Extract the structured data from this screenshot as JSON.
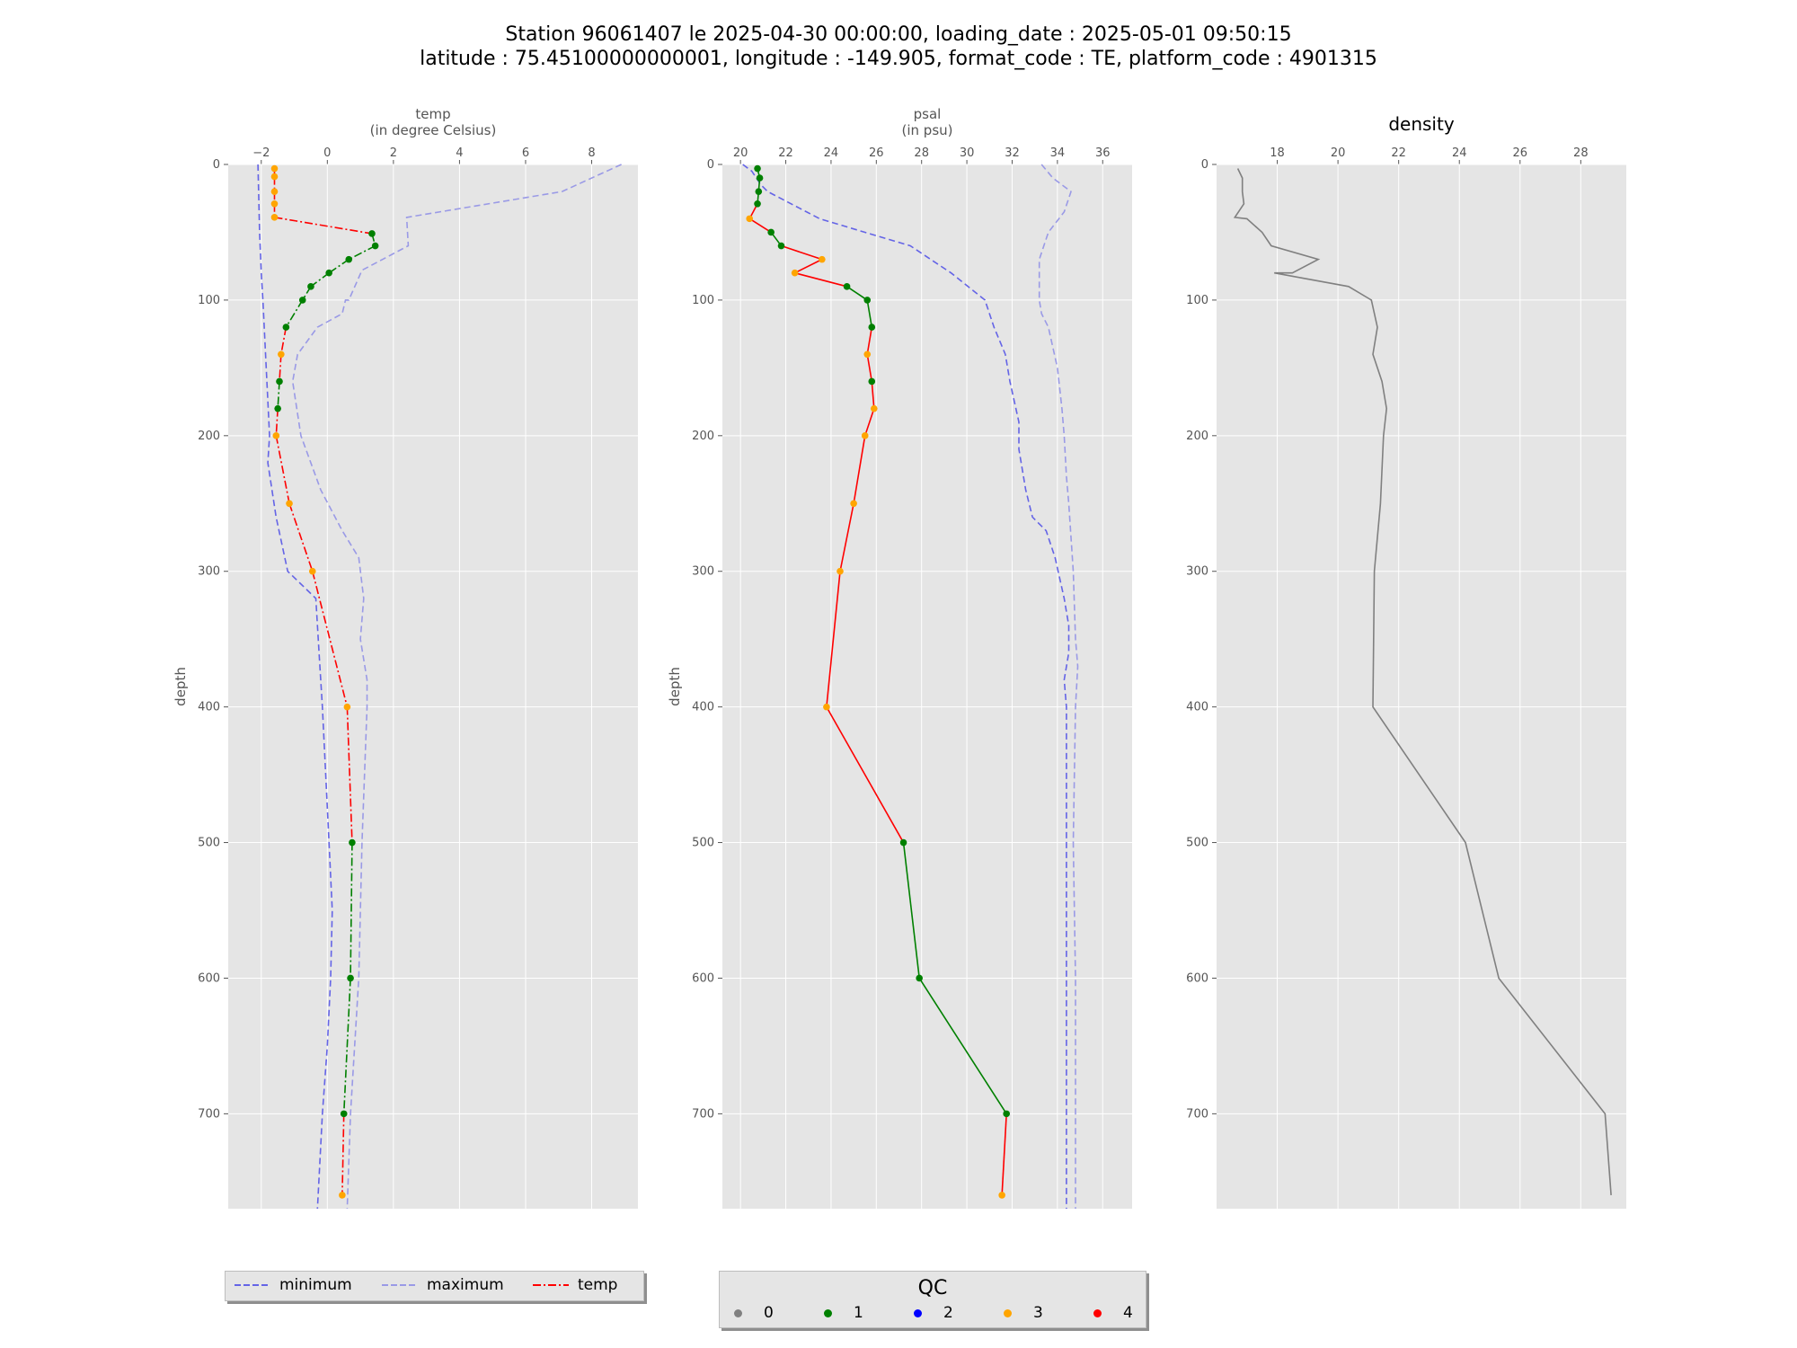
{
  "title": {
    "line1": "Station 96061407 le 2025-04-30 00:00:00, loading_date : 2025-05-01 09:50:15",
    "line2": "latitude : 75.45100000000001, longitude : -149.905, format_code : TE, platform_code : 4901315"
  },
  "legend_lines": [
    {
      "label": "minimum",
      "color": "#6464e6",
      "dash": "dashed"
    },
    {
      "label": "maximum",
      "color": "#9a9ae6",
      "dash": "dashed"
    },
    {
      "label": "temp",
      "color": "#ff0000",
      "dash": "dashdot"
    }
  ],
  "legend_qc": {
    "title": "QC",
    "entries": [
      {
        "label": "0",
        "color": "#808080"
      },
      {
        "label": "1",
        "color": "#008000"
      },
      {
        "label": "2",
        "color": "#0000ff"
      },
      {
        "label": "3",
        "color": "#ffa500"
      },
      {
        "label": "4",
        "color": "#ff0000"
      }
    ]
  },
  "chart_data": [
    {
      "type": "line",
      "title": "temp\n(in degree Celsius)",
      "ylabel": "depth",
      "xlim": [
        -3.0,
        9.4
      ],
      "ylim": [
        770,
        0
      ],
      "x_ticks": [
        -2,
        0,
        2,
        4,
        6,
        8
      ],
      "x_tick_labels": [
        "−2",
        "0",
        "2",
        "4",
        "6",
        "8"
      ],
      "y_ticks": [
        0,
        100,
        200,
        300,
        400,
        500,
        600,
        700
      ],
      "grid": true,
      "x_axis_position": "top",
      "qc_colors": {
        "1": "#008000",
        "3": "#ffa500",
        "4": "#ff0000"
      },
      "profile": {
        "name": "temp",
        "points": [
          {
            "value": -1.6,
            "depth": 3,
            "qc": 3
          },
          {
            "value": -1.6,
            "depth": 9,
            "qc": 3
          },
          {
            "value": -1.6,
            "depth": 20,
            "qc": 3
          },
          {
            "value": -1.6,
            "depth": 29,
            "qc": 3
          },
          {
            "value": -1.6,
            "depth": 39,
            "qc": 3
          },
          {
            "value": 1.35,
            "depth": 51,
            "qc": 1
          },
          {
            "value": 1.45,
            "depth": 60,
            "qc": 1
          },
          {
            "value": 0.65,
            "depth": 70,
            "qc": 1
          },
          {
            "value": 0.05,
            "depth": 80,
            "qc": 1
          },
          {
            "value": -0.5,
            "depth": 90,
            "qc": 1
          },
          {
            "value": -0.75,
            "depth": 100,
            "qc": 1
          },
          {
            "value": -1.25,
            "depth": 120,
            "qc": 1
          },
          {
            "value": -1.4,
            "depth": 140,
            "qc": 3
          },
          {
            "value": -1.45,
            "depth": 160,
            "qc": 1
          },
          {
            "value": -1.5,
            "depth": 180,
            "qc": 1
          },
          {
            "value": -1.55,
            "depth": 200,
            "qc": 3
          },
          {
            "value": -1.15,
            "depth": 250,
            "qc": 3
          },
          {
            "value": -0.45,
            "depth": 300,
            "qc": 3
          },
          {
            "value": 0.6,
            "depth": 400,
            "qc": 3
          },
          {
            "value": 0.75,
            "depth": 500,
            "qc": 1
          },
          {
            "value": 0.7,
            "depth": 600,
            "qc": 1
          },
          {
            "value": 0.5,
            "depth": 700,
            "qc": 1
          },
          {
            "value": 0.45,
            "depth": 760,
            "qc": 3
          }
        ]
      },
      "series": [
        {
          "name": "minimum",
          "color": "#6464e6",
          "points": [
            [
              -2.1,
              0
            ],
            [
              -2.05,
              50
            ],
            [
              -2.0,
              80
            ],
            [
              -1.95,
              100
            ],
            [
              -1.85,
              150
            ],
            [
              -1.75,
              200
            ],
            [
              -1.8,
              220
            ],
            [
              -1.55,
              260
            ],
            [
              -1.2,
              300
            ],
            [
              -0.35,
              320
            ],
            [
              -0.25,
              360
            ],
            [
              -0.15,
              400
            ],
            [
              0.05,
              500
            ],
            [
              0.15,
              550
            ],
            [
              0.1,
              600
            ],
            [
              0.0,
              650
            ],
            [
              -0.15,
              700
            ],
            [
              -0.3,
              770
            ]
          ]
        },
        {
          "name": "maximum",
          "color": "#9a9ae6",
          "points": [
            [
              8.9,
              0
            ],
            [
              7.1,
              20
            ],
            [
              2.4,
              39
            ],
            [
              2.45,
              60
            ],
            [
              1.05,
              78
            ],
            [
              0.65,
              100
            ],
            [
              0.55,
              100
            ],
            [
              0.45,
              110
            ],
            [
              -0.3,
              120
            ],
            [
              -0.9,
              140
            ],
            [
              -1.05,
              160
            ],
            [
              -0.8,
              200
            ],
            [
              -0.2,
              240
            ],
            [
              0.45,
              270
            ],
            [
              0.95,
              290
            ],
            [
              1.1,
              320
            ],
            [
              1.0,
              350
            ],
            [
              1.2,
              380
            ],
            [
              1.2,
              400
            ],
            [
              1.05,
              500
            ],
            [
              0.95,
              600
            ],
            [
              0.7,
              700
            ],
            [
              0.6,
              770
            ]
          ]
        }
      ]
    },
    {
      "type": "line",
      "title": "psal\n(in psu)",
      "ylabel": "depth",
      "xlim": [
        19.2,
        37.3
      ],
      "ylim": [
        770,
        0
      ],
      "x_ticks": [
        20,
        22,
        24,
        26,
        28,
        30,
        32,
        34,
        36
      ],
      "x_tick_labels": [
        "20",
        "22",
        "24",
        "26",
        "28",
        "30",
        "32",
        "34",
        "36"
      ],
      "y_ticks": [
        0,
        100,
        200,
        300,
        400,
        500,
        600,
        700
      ],
      "grid": true,
      "x_axis_position": "top",
      "qc_colors": {
        "1": "#008000",
        "3": "#ffa500",
        "4": "#ff0000"
      },
      "profile": {
        "name": "psal",
        "points": [
          {
            "value": 20.75,
            "depth": 3,
            "qc": 1
          },
          {
            "value": 20.85,
            "depth": 10,
            "qc": 1
          },
          {
            "value": 20.8,
            "depth": 20,
            "qc": 1
          },
          {
            "value": 20.75,
            "depth": 29,
            "qc": 1
          },
          {
            "value": 20.4,
            "depth": 40,
            "qc": 3
          },
          {
            "value": 21.35,
            "depth": 50,
            "qc": 1
          },
          {
            "value": 21.8,
            "depth": 60,
            "qc": 1
          },
          {
            "value": 23.6,
            "depth": 70,
            "qc": 3
          },
          {
            "value": 22.4,
            "depth": 80,
            "qc": 3
          },
          {
            "value": 24.7,
            "depth": 90,
            "qc": 1
          },
          {
            "value": 25.6,
            "depth": 100,
            "qc": 1
          },
          {
            "value": 25.8,
            "depth": 120,
            "qc": 1
          },
          {
            "value": 25.6,
            "depth": 140,
            "qc": 3
          },
          {
            "value": 25.8,
            "depth": 160,
            "qc": 1
          },
          {
            "value": 25.9,
            "depth": 180,
            "qc": 3
          },
          {
            "value": 25.5,
            "depth": 200,
            "qc": 3
          },
          {
            "value": 25.0,
            "depth": 250,
            "qc": 3
          },
          {
            "value": 24.4,
            "depth": 300,
            "qc": 3
          },
          {
            "value": 23.8,
            "depth": 400,
            "qc": 3
          },
          {
            "value": 27.2,
            "depth": 500,
            "qc": 1
          },
          {
            "value": 27.9,
            "depth": 600,
            "qc": 1
          },
          {
            "value": 31.75,
            "depth": 700,
            "qc": 1
          },
          {
            "value": 31.55,
            "depth": 760,
            "qc": 3
          }
        ]
      },
      "series": [
        {
          "name": "minimum",
          "color": "#6464e6",
          "points": [
            [
              20.1,
              0
            ],
            [
              20.5,
              5
            ],
            [
              20.9,
              15
            ],
            [
              21.2,
              20
            ],
            [
              23.5,
              40
            ],
            [
              25.5,
              50
            ],
            [
              27.5,
              60
            ],
            [
              29.3,
              80
            ],
            [
              30.8,
              100
            ],
            [
              31.2,
              120
            ],
            [
              31.7,
              140
            ],
            [
              31.9,
              160
            ],
            [
              32.3,
              190
            ],
            [
              32.3,
              210
            ],
            [
              32.6,
              240
            ],
            [
              32.9,
              260
            ],
            [
              33.5,
              270
            ],
            [
              33.9,
              290
            ],
            [
              34.3,
              320
            ],
            [
              34.5,
              340
            ],
            [
              34.5,
              360
            ],
            [
              34.3,
              380
            ],
            [
              34.4,
              400
            ],
            [
              34.4,
              550
            ],
            [
              34.4,
              770
            ]
          ]
        },
        {
          "name": "maximum",
          "color": "#9a9ae6",
          "points": [
            [
              33.3,
              0
            ],
            [
              33.8,
              10
            ],
            [
              34.6,
              20
            ],
            [
              34.3,
              35
            ],
            [
              33.6,
              50
            ],
            [
              33.2,
              70
            ],
            [
              33.2,
              100
            ],
            [
              33.3,
              110
            ],
            [
              33.6,
              120
            ],
            [
              34.0,
              150
            ],
            [
              34.2,
              180
            ],
            [
              34.3,
              200
            ],
            [
              34.4,
              230
            ],
            [
              34.5,
              250
            ],
            [
              34.7,
              300
            ],
            [
              34.8,
              350
            ],
            [
              34.9,
              370
            ],
            [
              34.8,
              400
            ],
            [
              34.7,
              500
            ],
            [
              34.8,
              600
            ],
            [
              34.8,
              700
            ],
            [
              34.8,
              770
            ]
          ]
        }
      ]
    },
    {
      "type": "line",
      "title": "density",
      "xlim": [
        16.0,
        29.5
      ],
      "ylim": [
        770,
        0
      ],
      "x_ticks": [
        18,
        20,
        22,
        24,
        26,
        28
      ],
      "x_tick_labels": [
        "18",
        "20",
        "22",
        "24",
        "26",
        "28"
      ],
      "y_ticks": [
        0,
        100,
        200,
        300,
        400,
        500,
        600,
        700
      ],
      "grid": true,
      "x_axis_position": "top",
      "series": [
        {
          "name": "density",
          "color": "#808080",
          "points": [
            [
              16.7,
              3
            ],
            [
              16.85,
              10
            ],
            [
              16.85,
              20
            ],
            [
              16.9,
              29
            ],
            [
              16.6,
              39
            ],
            [
              17.0,
              40
            ],
            [
              17.5,
              50
            ],
            [
              17.8,
              60
            ],
            [
              19.35,
              70
            ],
            [
              18.5,
              80
            ],
            [
              17.9,
              80
            ],
            [
              20.35,
              90
            ],
            [
              21.1,
              100
            ],
            [
              21.3,
              120
            ],
            [
              21.15,
              140
            ],
            [
              21.45,
              160
            ],
            [
              21.6,
              180
            ],
            [
              21.5,
              200
            ],
            [
              21.4,
              250
            ],
            [
              21.2,
              300
            ],
            [
              21.15,
              400
            ],
            [
              24.2,
              500
            ],
            [
              25.3,
              600
            ],
            [
              28.8,
              700
            ],
            [
              29.0,
              760
            ]
          ]
        }
      ]
    }
  ]
}
